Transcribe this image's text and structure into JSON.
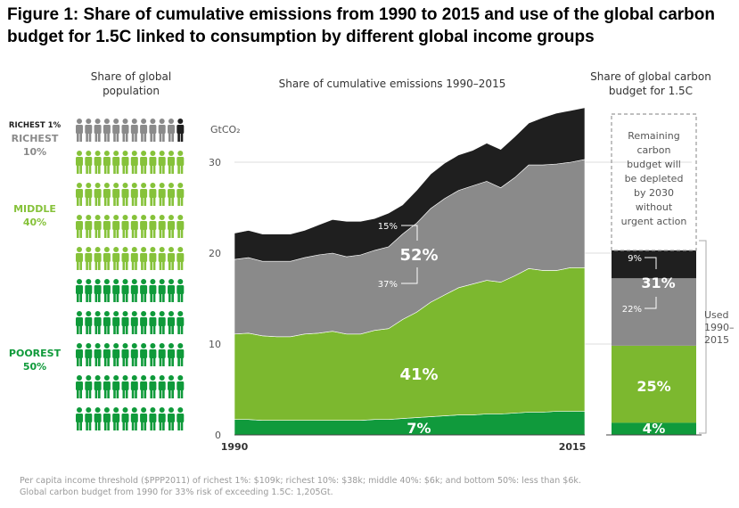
{
  "title": "Figure 1: Share of cumulative emissions from 1990 to 2015 and use of the global carbon budget for 1.5C linked to consumption by different global income groups",
  "headers": {
    "population": "Share of global population",
    "emissions": "Share of cumulative emissions 1990–2015",
    "budget": "Share of global carbon budget for 1.5C"
  },
  "groups": {
    "richest1": "RICHEST 1%",
    "richest10_a": "RICHEST",
    "richest10_b": "10%",
    "middle_a": "MIDDLE",
    "middle_b": "40%",
    "poorest_a": "POOREST",
    "poorest_b": "50%"
  },
  "colors": {
    "richest1": "#1f1f1f",
    "richest10": "#8a8a8a",
    "middle": "#7cb82f",
    "poorest": "#109a3c",
    "icon_middle": "#86c23a",
    "icon_poorest": "#0f9a3a"
  },
  "chart_data": {
    "type": "area",
    "ylabel": "GtCO₂",
    "ylim": [
      0,
      35
    ],
    "yticks": [
      0,
      10,
      20,
      30
    ],
    "x": [
      1990,
      1991,
      1992,
      1993,
      1994,
      1995,
      1996,
      1997,
      1998,
      1999,
      2000,
      2001,
      2002,
      2003,
      2004,
      2005,
      2006,
      2007,
      2008,
      2009,
      2010,
      2011,
      2012,
      2013,
      2014,
      2015
    ],
    "xtick_labels": [
      "1990",
      "2015"
    ],
    "series": [
      {
        "key": "poorest",
        "values": [
          1.7,
          1.7,
          1.6,
          1.6,
          1.6,
          1.6,
          1.6,
          1.6,
          1.6,
          1.6,
          1.7,
          1.7,
          1.8,
          1.9,
          2.0,
          2.1,
          2.2,
          2.2,
          2.3,
          2.3,
          2.4,
          2.5,
          2.5,
          2.6,
          2.6,
          2.6
        ]
      },
      {
        "key": "middle",
        "values": [
          9.4,
          9.5,
          9.3,
          9.2,
          9.2,
          9.5,
          9.6,
          9.8,
          9.5,
          9.5,
          9.8,
          10.0,
          10.9,
          11.6,
          12.6,
          13.3,
          14.0,
          14.4,
          14.7,
          14.5,
          15.1,
          15.8,
          15.6,
          15.5,
          15.8,
          15.8
        ]
      },
      {
        "key": "richest10",
        "values": [
          8.2,
          8.3,
          8.2,
          8.3,
          8.3,
          8.4,
          8.6,
          8.6,
          8.5,
          8.7,
          8.8,
          9.0,
          9.4,
          9.8,
          10.3,
          10.6,
          10.7,
          10.8,
          10.9,
          10.4,
          10.8,
          11.4,
          11.6,
          11.7,
          11.6,
          11.9
        ]
      },
      {
        "key": "richest1",
        "values": [
          2.9,
          3.0,
          3.0,
          3.0,
          3.0,
          3.0,
          3.3,
          3.7,
          3.9,
          3.7,
          3.5,
          3.7,
          3.2,
          3.6,
          3.8,
          3.9,
          3.9,
          3.9,
          4.2,
          4.2,
          4.5,
          4.6,
          5.2,
          5.6,
          5.7,
          5.7
        ]
      }
    ],
    "labels": {
      "poorest": "7%",
      "middle": "41%",
      "rich_total": "52%",
      "richest10": "37%",
      "richest1": "15%"
    },
    "budget": {
      "type": "stacked-bar",
      "used": {
        "poorest": 4,
        "middle": 25,
        "richest10": 22,
        "richest1": 9,
        "rich_total": 31
      },
      "labels": {
        "poorest": "4%",
        "middle": "25%",
        "rich_total": "31%",
        "richest10": "22%",
        "richest1": "9%"
      },
      "remaining_lines": [
        "Remaining",
        "carbon",
        "budget will",
        "be depleted",
        "by 2030",
        "without",
        "urgent action"
      ],
      "used_lines": [
        "Used",
        "1990–",
        "2015"
      ]
    }
  },
  "footnote_1": "Per capita income threshold ($PPP2011) of richest 1%: $109k; richest 10%: $38k; middle 40%: $6k; and bottom 50%: less than $6k.",
  "footnote_2": "Global carbon budget from 1990 for 33% risk of exceeding 1.5C: 1,205Gt."
}
